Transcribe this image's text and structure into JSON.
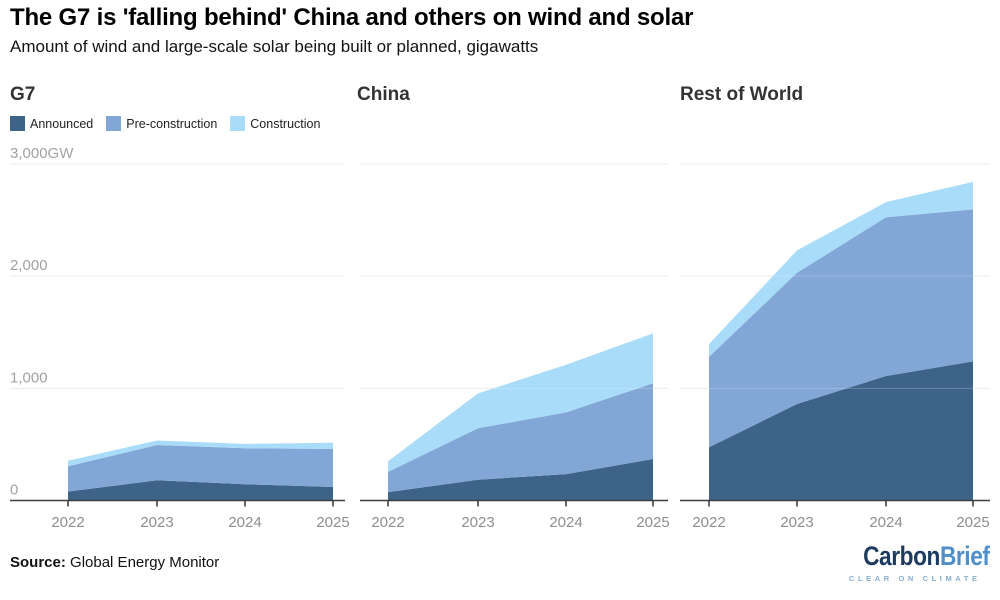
{
  "header": {
    "title": "The G7 is 'falling behind' China and others on wind and solar",
    "subtitle": "Amount of wind and large-scale solar being built or planned, gigawatts"
  },
  "legend": {
    "items": [
      {
        "label": "Announced",
        "color": "#3d6488"
      },
      {
        "label": "Pre-construction",
        "color": "#82a7d6"
      },
      {
        "label": "Construction",
        "color": "#a9dcf9"
      }
    ]
  },
  "chart_data": [
    {
      "type": "area",
      "stacked": true,
      "title": "G7",
      "unit": "GW",
      "x_tick_labels": [
        "2022",
        "2023",
        "2024",
        "2025"
      ],
      "series": [
        {
          "name": "Announced",
          "color": "#3d6488",
          "values": [
            80,
            180,
            145,
            120
          ]
        },
        {
          "name": "Pre-construction",
          "color": "#82a7d6",
          "values": [
            225,
            315,
            320,
            340
          ]
        },
        {
          "name": "Construction",
          "color": "#a9dcf9",
          "values": [
            50,
            40,
            40,
            55
          ]
        }
      ],
      "ylim": [
        0,
        3000
      ],
      "y_gridlines": [
        1000,
        2000,
        3000
      ],
      "y_tick_labels": [
        {
          "value": 0,
          "label": "0"
        },
        {
          "value": 1000,
          "label": "1,000"
        },
        {
          "value": 2000,
          "label": "2,000"
        },
        {
          "value": 3000,
          "label": "3,000GW"
        }
      ],
      "grid": true,
      "legend_position": "top-left"
    },
    {
      "type": "area",
      "stacked": true,
      "title": "China",
      "unit": "GW",
      "x_tick_labels": [
        "2022",
        "2023",
        "2024",
        "2025"
      ],
      "series": [
        {
          "name": "Announced",
          "color": "#3d6488",
          "values": [
            75,
            185,
            235,
            370
          ]
        },
        {
          "name": "Pre-construction",
          "color": "#82a7d6",
          "values": [
            180,
            460,
            550,
            675
          ]
        },
        {
          "name": "Construction",
          "color": "#a9dcf9",
          "values": [
            95,
            310,
            425,
            445
          ]
        }
      ],
      "ylim": [
        0,
        3000
      ],
      "y_gridlines": [
        1000,
        2000,
        3000
      ],
      "y_tick_labels": [],
      "grid": true
    },
    {
      "type": "area",
      "stacked": true,
      "title": "Rest of World",
      "unit": "GW",
      "x_tick_labels": [
        "2022",
        "2023",
        "2024",
        "2025"
      ],
      "series": [
        {
          "name": "Announced",
          "color": "#3d6488",
          "values": [
            475,
            860,
            1110,
            1240
          ]
        },
        {
          "name": "Pre-construction",
          "color": "#82a7d6",
          "values": [
            805,
            1170,
            1415,
            1355
          ]
        },
        {
          "name": "Construction",
          "color": "#a9dcf9",
          "values": [
            115,
            200,
            135,
            245
          ]
        }
      ],
      "ylim": [
        0,
        3000
      ],
      "y_gridlines": [
        1000,
        2000,
        3000
      ],
      "y_tick_labels": [],
      "grid": true
    }
  ],
  "footer": {
    "source_label": "Source:",
    "source_value": "Global Energy Monitor",
    "logo": {
      "part1": "Carbon",
      "part2": "Brief",
      "tagline": "CLEAR ON CLIMATE",
      "part1_color": "#1d3a5f",
      "part2_color": "#4e8fcb",
      "tagline_color": "#85aed3"
    }
  }
}
